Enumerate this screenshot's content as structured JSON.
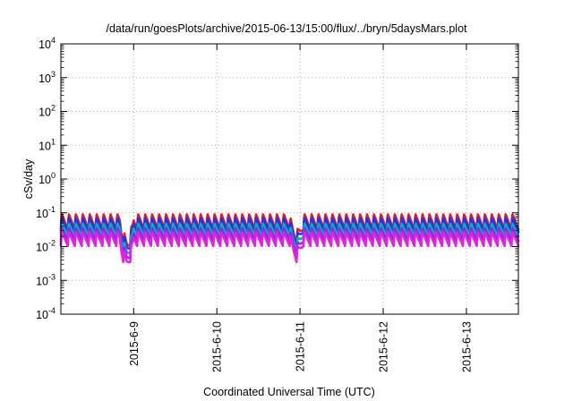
{
  "chart_data": {
    "type": "line",
    "title": "/data/run/goesPlots/archive/2015-06-13/15:00/flux/../bryn/5daysMars.plot",
    "xlabel": "Coordinated Universal Time (UTC)",
    "ylabel": "cSv/day",
    "yscale": "log",
    "ylim": [
      0.0001,
      10000
    ],
    "y_ticks": [
      {
        "exp": "-4",
        "value": 0.0001
      },
      {
        "exp": "-3",
        "value": 0.001
      },
      {
        "exp": "-2",
        "value": 0.01
      },
      {
        "exp": "-1",
        "value": 0.1
      },
      {
        "exp": "0",
        "value": 1
      },
      {
        "exp": "1",
        "value": 10
      },
      {
        "exp": "2",
        "value": 100
      },
      {
        "exp": "3",
        "value": 1000
      },
      {
        "exp": "4",
        "value": 10000
      }
    ],
    "xlim": [
      "2015-06-08 03:00",
      "2015-06-13 15:00"
    ],
    "x_ticks": [
      "2015-6-9",
      "2015-6-10",
      "2015-6-11",
      "2015-6-12",
      "2015-6-13"
    ],
    "grid": true,
    "legend": "none",
    "peak_interval_hours": 2,
    "dips": [
      {
        "time": "2015-06-08 22:00",
        "factor": 5
      },
      {
        "time": "2015-06-10 23:00",
        "factor": 3
      }
    ],
    "series": [
      {
        "color": "#e8191c",
        "peak": 0.095,
        "trough": 0.032
      },
      {
        "color": "#2233ee",
        "peak": 0.072,
        "trough": 0.027
      },
      {
        "color": "#00b4b4",
        "peak": 0.05,
        "trough": 0.02
      },
      {
        "color": "#8a2be2",
        "peak": 0.037,
        "trough": 0.0145
      },
      {
        "color": "#e61ee6",
        "peak": 0.028,
        "trough": 0.0105
      }
    ]
  }
}
